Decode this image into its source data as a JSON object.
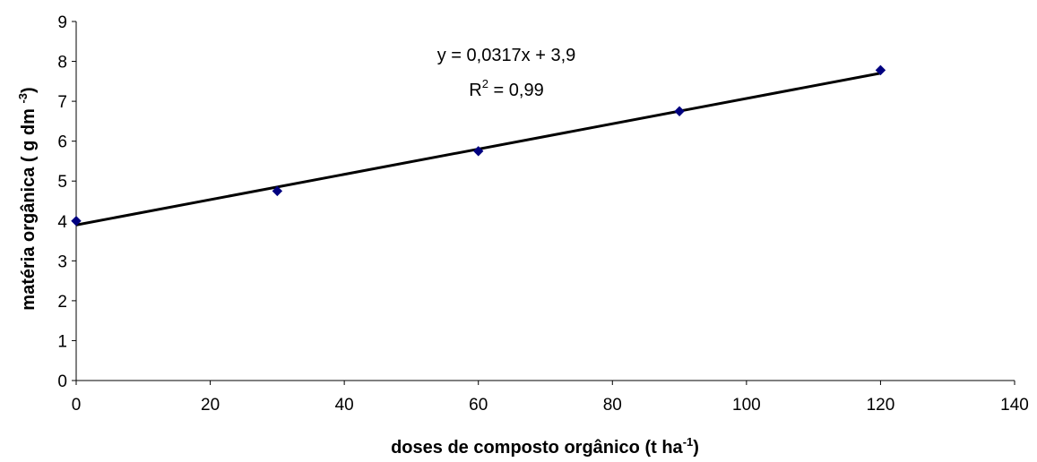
{
  "chart_data": {
    "type": "scatter",
    "x": [
      0,
      30,
      60,
      90,
      120
    ],
    "y": [
      4.0,
      4.75,
      5.75,
      6.75,
      7.78
    ],
    "xlim": [
      0,
      140
    ],
    "ylim": [
      0,
      9
    ],
    "xticks": [
      "0",
      "20",
      "40",
      "60",
      "80",
      "100",
      "120",
      "140"
    ],
    "yticks": [
      "0",
      "1",
      "2",
      "3",
      "4",
      "5",
      "6",
      "7",
      "8",
      "9"
    ],
    "xlabel": {
      "main": "doses de composto orgânico (t ha",
      "sup": "-1",
      "end": ")"
    },
    "ylabel": {
      "main": "matéria orgânica ( g dm ",
      "sup": "-3",
      "end": ")"
    },
    "trendline": {
      "slope": 0.0317,
      "intercept": 3.9,
      "x_range": [
        0,
        120
      ]
    },
    "annotation": {
      "equation": "y = 0,0317x + 3,9",
      "r2_prefix": "R",
      "r2_sup": "2",
      "r2_value": " = 0,99"
    },
    "grid": false,
    "legend": "none",
    "marker_color": "#000080",
    "line_color": "#000000"
  }
}
